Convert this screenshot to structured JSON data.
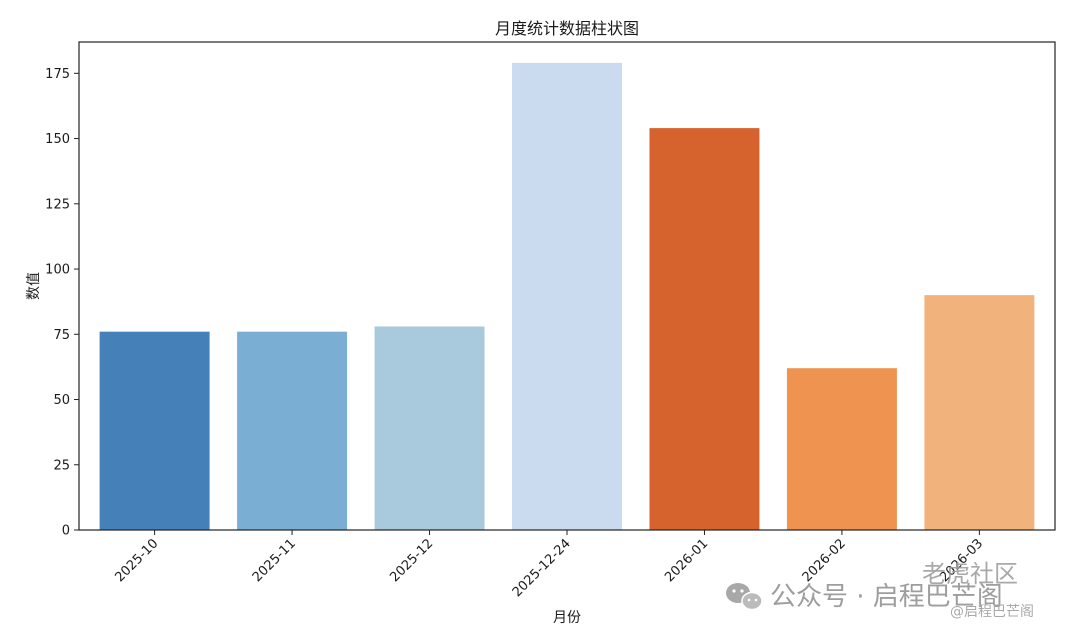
{
  "chart_data": {
    "type": "bar",
    "title": "月度统计数据柱状图",
    "xlabel": "月份",
    "ylabel": "数值",
    "categories": [
      "2025-10",
      "2025-11",
      "2025-12",
      "2025-12-24",
      "2026-01",
      "2026-02",
      "2026-03"
    ],
    "values": [
      76,
      76,
      78,
      179,
      154,
      62,
      90
    ],
    "colors": [
      "#4580b8",
      "#7aaed3",
      "#a9c9dd",
      "#cbdbef",
      "#d6622d",
      "#ef9350",
      "#f2b27c"
    ],
    "ylim": [
      0,
      187
    ],
    "yticks": [
      0,
      25,
      50,
      75,
      100,
      125,
      150,
      175
    ],
    "grid": false,
    "legend": "none"
  },
  "watermark": {
    "main": "公众号 · 启程巴芒阁",
    "corner_top": "老虎社区",
    "corner_bottom": "@启程巴芒阁",
    "icon": "wechat-icon"
  }
}
